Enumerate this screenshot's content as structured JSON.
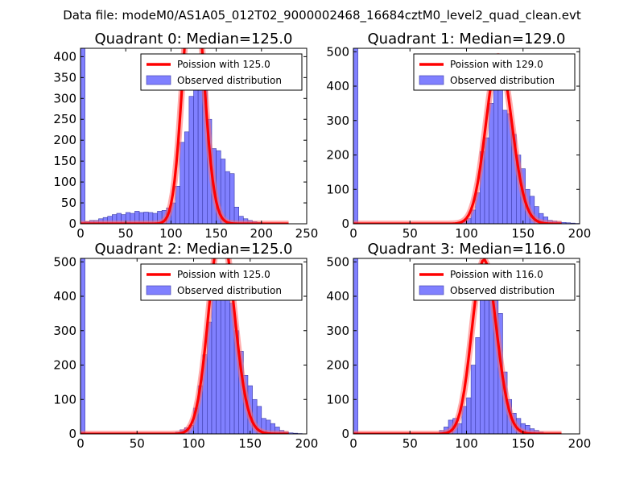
{
  "suptitle": "Data file: modeM0/AS1A05_012T02_9000002468_16684cztM0_level2_quad_clean.evt",
  "legend": {
    "poisson_prefix": "Poission with ",
    "observed": "Observed distribution"
  },
  "colors": {
    "bar": "#8080ff",
    "bar_edge": "#3a3aa8",
    "line": "#ff0000"
  },
  "chart_data": [
    {
      "type": "bar",
      "title": "Quadrant 0: Median=125.0",
      "median": 125.0,
      "poisson_label": "125.0",
      "xlim": [
        0,
        250
      ],
      "ylim": [
        0,
        420
      ],
      "xticks": [
        0,
        50,
        100,
        150,
        200,
        250
      ],
      "yticks": [
        0,
        50,
        100,
        150,
        200,
        250,
        300,
        350,
        400
      ],
      "bin_width": 5,
      "bins_x": [
        0,
        5,
        10,
        15,
        20,
        25,
        30,
        35,
        40,
        45,
        50,
        55,
        60,
        65,
        70,
        75,
        80,
        85,
        90,
        95,
        100,
        105,
        110,
        115,
        120,
        125,
        130,
        135,
        140,
        145,
        150,
        155,
        160,
        165,
        170,
        175,
        180,
        185,
        190,
        195,
        200,
        205
      ],
      "bins_y": [
        420,
        5,
        8,
        8,
        12,
        15,
        18,
        22,
        25,
        22,
        27,
        25,
        30,
        27,
        28,
        27,
        25,
        30,
        32,
        38,
        50,
        90,
        195,
        220,
        305,
        320,
        380,
        360,
        250,
        180,
        175,
        155,
        125,
        120,
        40,
        18,
        12,
        8,
        5,
        3,
        2,
        1
      ]
    },
    {
      "type": "bar",
      "title": "Quadrant 1: Median=129.0",
      "median": 129.0,
      "poisson_label": "129.0",
      "xlim": [
        0,
        200
      ],
      "ylim": [
        0,
        510
      ],
      "xticks": [
        0,
        50,
        100,
        150,
        200
      ],
      "yticks": [
        0,
        100,
        200,
        300,
        400,
        500
      ],
      "bin_width": 4,
      "bins_x": [
        0,
        4,
        8,
        12,
        16,
        20,
        24,
        28,
        32,
        36,
        40,
        44,
        48,
        52,
        56,
        60,
        64,
        68,
        72,
        76,
        80,
        84,
        88,
        92,
        96,
        100,
        104,
        108,
        112,
        116,
        120,
        124,
        128,
        132,
        136,
        140,
        144,
        148,
        152,
        156,
        160,
        164,
        168,
        172,
        176,
        180,
        184,
        188,
        192,
        196
      ],
      "bins_y": [
        510,
        0,
        0,
        0,
        0,
        0,
        0,
        0,
        0,
        0,
        0,
        0,
        0,
        0,
        0,
        0,
        0,
        0,
        0,
        0,
        0,
        0,
        0,
        1,
        8,
        15,
        40,
        90,
        210,
        250,
        350,
        445,
        475,
        330,
        320,
        260,
        200,
        160,
        100,
        80,
        50,
        30,
        20,
        10,
        8,
        5,
        4,
        3,
        2,
        1
      ]
    },
    {
      "type": "bar",
      "title": "Quadrant 2: Median=125.0",
      "median": 125.0,
      "poisson_label": "125.0",
      "xlim": [
        0,
        200
      ],
      "ylim": [
        0,
        510
      ],
      "xticks": [
        0,
        50,
        100,
        150,
        200
      ],
      "yticks": [
        0,
        100,
        200,
        300,
        400,
        500
      ],
      "bin_width": 4,
      "bins_x": [
        0,
        4,
        8,
        12,
        16,
        20,
        24,
        28,
        32,
        36,
        40,
        44,
        48,
        52,
        56,
        60,
        64,
        68,
        72,
        76,
        80,
        84,
        88,
        92,
        96,
        100,
        104,
        108,
        112,
        116,
        120,
        124,
        128,
        132,
        136,
        140,
        144,
        148,
        152,
        156,
        160,
        164,
        168,
        172,
        176,
        180,
        184,
        188,
        192,
        196
      ],
      "bins_y": [
        510,
        0,
        0,
        0,
        0,
        0,
        0,
        0,
        0,
        0,
        0,
        0,
        0,
        0,
        0,
        0,
        0,
        0,
        0,
        0,
        2,
        5,
        12,
        18,
        25,
        75,
        140,
        230,
        325,
        395,
        460,
        450,
        470,
        380,
        300,
        240,
        170,
        140,
        100,
        80,
        45,
        40,
        30,
        20,
        10,
        5,
        3,
        2,
        1,
        0
      ]
    },
    {
      "type": "bar",
      "title": "Quadrant 3: Median=116.0",
      "median": 116.0,
      "poisson_label": "116.0",
      "xlim": [
        0,
        200
      ],
      "ylim": [
        0,
        510
      ],
      "xticks": [
        0,
        50,
        100,
        150,
        200
      ],
      "yticks": [
        0,
        100,
        200,
        300,
        400,
        500
      ],
      "bin_width": 4,
      "bins_x": [
        0,
        4,
        8,
        12,
        16,
        20,
        24,
        28,
        32,
        36,
        40,
        44,
        48,
        52,
        56,
        60,
        64,
        68,
        72,
        76,
        80,
        84,
        88,
        92,
        96,
        100,
        104,
        108,
        112,
        116,
        120,
        124,
        128,
        132,
        136,
        140,
        144,
        148,
        152,
        156,
        160,
        164,
        168,
        172,
        176,
        180,
        184,
        188,
        192,
        196
      ],
      "bins_y": [
        510,
        0,
        0,
        0,
        0,
        0,
        0,
        0,
        0,
        0,
        0,
        0,
        0,
        0,
        0,
        0,
        0,
        0,
        1,
        10,
        20,
        40,
        45,
        30,
        80,
        105,
        200,
        280,
        390,
        470,
        480,
        450,
        350,
        180,
        100,
        60,
        45,
        30,
        25,
        15,
        10,
        5,
        0,
        0,
        0,
        0,
        0,
        0,
        0,
        0
      ]
    }
  ]
}
